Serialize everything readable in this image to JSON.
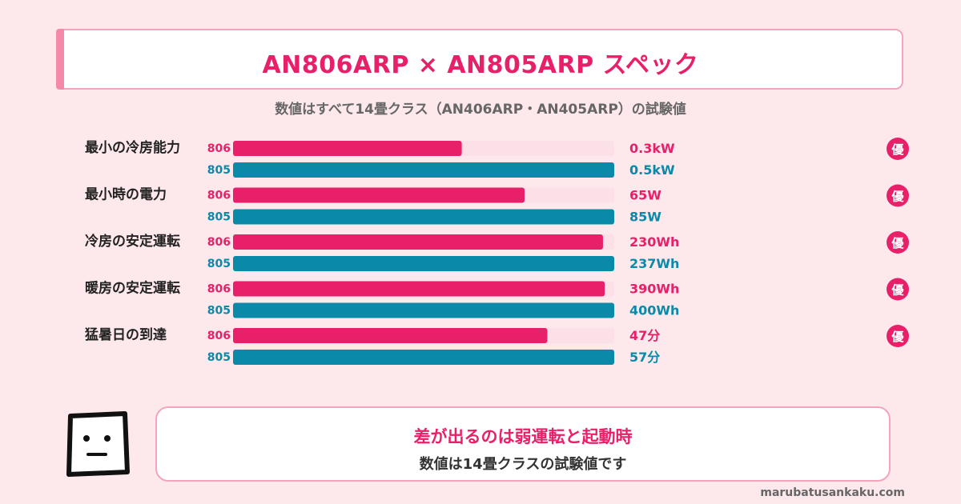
{
  "header": {
    "title": "AN806ARP × AN805ARP スペック",
    "subtitle": "数値はすべて14畳クラス（AN406ARP・AN405ARP）の試験値"
  },
  "chart_data": {
    "type": "bar",
    "orientation": "horizontal",
    "series_labels": [
      "806",
      "805"
    ],
    "best_badge": "優",
    "colors": {
      "806": "#e8206a",
      "805": "#0a8aa8",
      "track": "#fbe0e8",
      "badge": "#e8206a"
    },
    "categories": [
      {
        "label": "最小の冷房能力",
        "v806": 0.3,
        "v805": 0.5,
        "t806": "0.3kW",
        "t805": "0.5kW",
        "best": "806"
      },
      {
        "label": "最小時の電力",
        "v806": 65,
        "v805": 85,
        "t806": "65W",
        "t805": "85W",
        "best": "806"
      },
      {
        "label": "冷房の安定運転",
        "v806": 230,
        "v805": 237,
        "t806": "230Wh",
        "t805": "237Wh",
        "best": "806"
      },
      {
        "label": "暖房の安定運転",
        "v806": 390,
        "v805": 400,
        "t806": "390Wh",
        "t805": "400Wh",
        "best": "806"
      },
      {
        "label": "猛暑日の到達",
        "v806": 47,
        "v805": 57,
        "t806": "47分",
        "t805": "57分",
        "best": "806"
      }
    ]
  },
  "note": {
    "line1": "差が出るのは弱運転と起動時",
    "line2": "数値は14畳クラスの試験値です"
  },
  "footer": {
    "site": "marubatusankaku.com"
  }
}
